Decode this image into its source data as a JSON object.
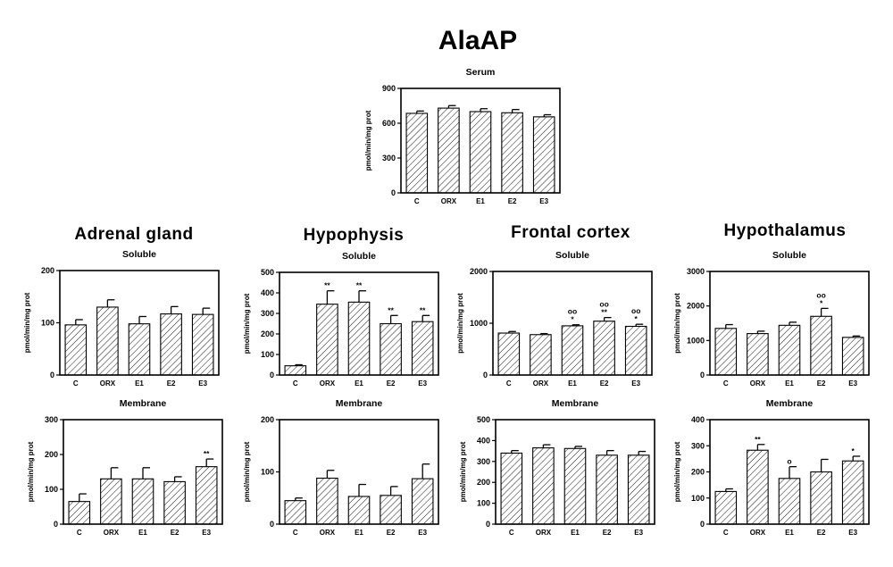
{
  "figure": {
    "title": "AlaAP",
    "organ_titles": [
      "Adrenal gland",
      "Hypophysis",
      "Frontal cortex",
      "Hypothalamus"
    ]
  },
  "chart_data": [
    {
      "id": "serum",
      "type": "bar",
      "title": "Serum",
      "ylabel": "pmol/min/mg prot",
      "ylim": [
        0,
        900
      ],
      "yticks": [
        0,
        300,
        600,
        900
      ],
      "categories": [
        "C",
        "ORX",
        "E1",
        "E2",
        "E3"
      ],
      "values": [
        685,
        730,
        700,
        690,
        655
      ],
      "errors": [
        20,
        22,
        25,
        28,
        18
      ],
      "annotations": [
        "",
        "",
        "",
        "",
        ""
      ]
    },
    {
      "id": "adrenal-soluble",
      "type": "bar",
      "title": "Soluble",
      "ylabel": "pmol/min/mg prot",
      "ylim": [
        0,
        200
      ],
      "yticks": [
        0,
        100,
        200
      ],
      "categories": [
        "C",
        "ORX",
        "E1",
        "E2",
        "E3"
      ],
      "values": [
        96,
        130,
        98,
        117,
        116
      ],
      "errors": [
        10,
        14,
        14,
        14,
        12
      ],
      "annotations": [
        "",
        "",
        "",
        "",
        ""
      ]
    },
    {
      "id": "hypophysis-soluble",
      "type": "bar",
      "title": "Soluble",
      "ylabel": "pmol/min/mg prot",
      "ylim": [
        0,
        500
      ],
      "yticks": [
        0,
        100,
        200,
        300,
        400,
        500
      ],
      "categories": [
        "C",
        "ORX",
        "E1",
        "E2",
        "E3"
      ],
      "values": [
        45,
        345,
        355,
        250,
        260
      ],
      "errors": [
        5,
        65,
        55,
        40,
        30
      ],
      "annotations": [
        "",
        "**",
        "**",
        "**",
        "**"
      ]
    },
    {
      "id": "frontal-soluble",
      "type": "bar",
      "title": "Soluble",
      "ylabel": "pmol/min/mg prot",
      "ylim": [
        0,
        2000
      ],
      "yticks": [
        0,
        1000,
        2000
      ],
      "categories": [
        "C",
        "ORX",
        "E1",
        "E2",
        "E3"
      ],
      "values": [
        810,
        780,
        950,
        1040,
        940
      ],
      "errors": [
        30,
        20,
        20,
        70,
        40
      ],
      "annotations": [
        "",
        "",
        "oo\n*",
        "oo\n**",
        "oo\n*"
      ]
    },
    {
      "id": "hypothalamus-soluble",
      "type": "bar",
      "title": "Soluble",
      "ylabel": "pmol/min/mg prot",
      "ylim": [
        0,
        3000
      ],
      "yticks": [
        0,
        1000,
        2000,
        3000
      ],
      "categories": [
        "C",
        "ORX",
        "E1",
        "E2",
        "E3"
      ],
      "values": [
        1350,
        1200,
        1440,
        1700,
        1090
      ],
      "errors": [
        110,
        70,
        90,
        230,
        40
      ],
      "annotations": [
        "",
        "",
        "",
        "oo\n*",
        ""
      ]
    },
    {
      "id": "adrenal-membrane",
      "type": "bar",
      "title": "Membrane",
      "ylabel": "pmol/min/mg prot",
      "ylim": [
        0,
        300
      ],
      "yticks": [
        0,
        100,
        200,
        300
      ],
      "categories": [
        "C",
        "ORX",
        "E1",
        "E2",
        "E3"
      ],
      "values": [
        65,
        130,
        130,
        122,
        165
      ],
      "errors": [
        22,
        32,
        32,
        14,
        22
      ],
      "annotations": [
        "",
        "",
        "",
        "",
        "**"
      ]
    },
    {
      "id": "hypophysis-membrane",
      "type": "bar",
      "title": "Membrane",
      "ylabel": "pmol/min/mg prot",
      "ylim": [
        0,
        200
      ],
      "yticks": [
        0,
        100,
        200
      ],
      "categories": [
        "C",
        "ORX",
        "E1",
        "E2",
        "E3"
      ],
      "values": [
        45,
        88,
        53,
        55,
        87
      ],
      "errors": [
        5,
        15,
        23,
        17,
        28
      ],
      "annotations": [
        "",
        "",
        "",
        "",
        ""
      ]
    },
    {
      "id": "frontal-membrane",
      "type": "bar",
      "title": "Membrane",
      "ylabel": "pmol/min/mg prot",
      "ylim": [
        0,
        500
      ],
      "yticks": [
        0,
        100,
        200,
        300,
        400,
        500
      ],
      "categories": [
        "C",
        "ORX",
        "E1",
        "E2",
        "E3"
      ],
      "values": [
        340,
        365,
        362,
        330,
        330
      ],
      "errors": [
        12,
        15,
        10,
        22,
        18
      ],
      "annotations": [
        "",
        "",
        "",
        "",
        ""
      ]
    },
    {
      "id": "hypothalamus-membrane",
      "type": "bar",
      "title": "Membrane",
      "ylabel": "pmol/min/mg prot",
      "ylim": [
        0,
        400
      ],
      "yticks": [
        0,
        100,
        200,
        300,
        400
      ],
      "categories": [
        "C",
        "ORX",
        "E1",
        "E2",
        "E3"
      ],
      "values": [
        125,
        283,
        175,
        200,
        242
      ],
      "errors": [
        10,
        22,
        45,
        48,
        18
      ],
      "annotations": [
        "",
        "**",
        "o",
        "",
        "*"
      ]
    }
  ]
}
